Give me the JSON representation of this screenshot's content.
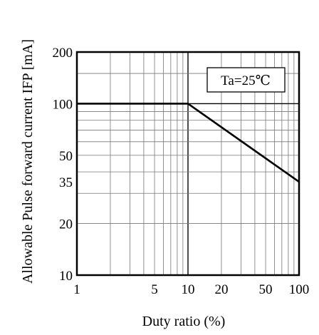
{
  "chart_data": {
    "type": "line",
    "xlabel": "Duty ratio (%)",
    "ylabel": "Allowable Pulse forward current IFP [mA]",
    "x_scale": "log",
    "y_scale": "log",
    "xlim": [
      1,
      100
    ],
    "ylim": [
      10,
      200
    ],
    "x_ticks": [
      1,
      5,
      10,
      20,
      50,
      100
    ],
    "y_ticks": [
      10,
      20,
      35,
      50,
      100,
      200
    ],
    "grid": true,
    "series": [
      {
        "x": [
          1,
          10,
          100
        ],
        "y": [
          100,
          100,
          35
        ]
      }
    ],
    "annotation": "Ta=25℃",
    "annotation_position": "top-right"
  }
}
